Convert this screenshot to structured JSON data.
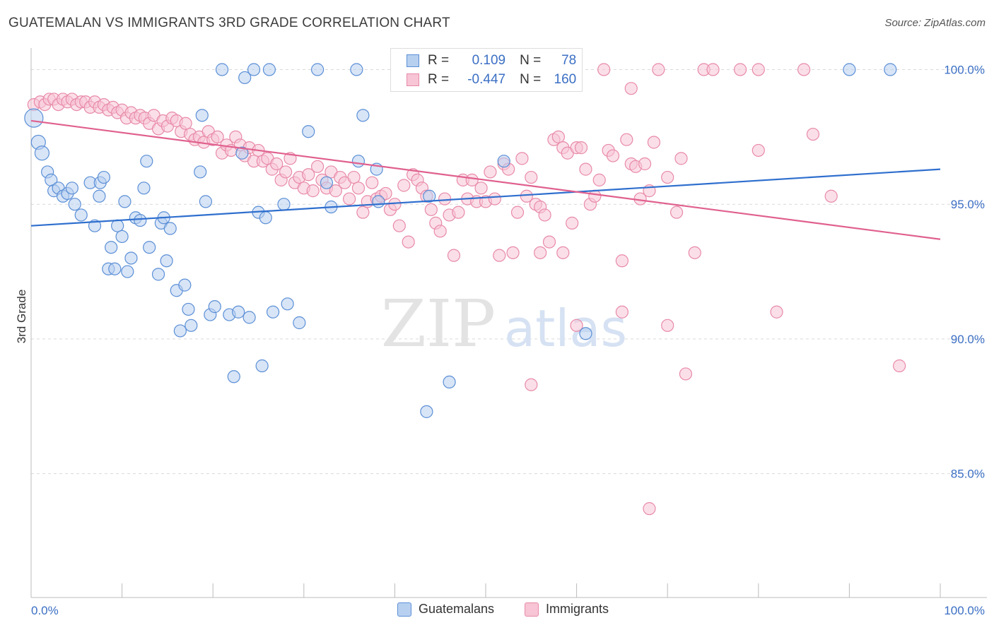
{
  "header": {
    "title": "GUATEMALAN VS IMMIGRANTS 3RD GRADE CORRELATION CHART",
    "source": "Source: ZipAtlas.com"
  },
  "watermark": {
    "zip": "ZIP",
    "atlas": "atlas"
  },
  "legend_top": {
    "rows": [
      {
        "r_label": "R =",
        "r_value": "0.109",
        "n_label": "N =",
        "n_value": "78"
      },
      {
        "r_label": "R =",
        "r_value": "-0.447",
        "n_label": "N =",
        "n_value": "160"
      }
    ]
  },
  "legend_bottom": {
    "items": [
      "Guatemalans",
      "Immigrants"
    ]
  },
  "colors": {
    "blue": "#5b8fd6",
    "blue_fill": "#b8d0f0",
    "blue_line": "#2f6fce",
    "pink": "#e88aa8",
    "pink_fill": "#f7c5d5",
    "pink_line": "#e0608e",
    "tick": "#3b6fc4"
  },
  "chart_data": {
    "type": "scatter",
    "title": "GUATEMALAN VS IMMIGRANTS 3RD GRADE CORRELATION CHART",
    "xlabel": "",
    "ylabel": "3rd Grade",
    "xlim": [
      0,
      100
    ],
    "ylim": [
      80.4,
      100.8
    ],
    "x_tick_labels": [
      "0.0%",
      "100.0%"
    ],
    "y_ticks": [
      85,
      90,
      95,
      100
    ],
    "y_tick_labels": [
      "85.0%",
      "90.0%",
      "95.0%",
      "100.0%"
    ],
    "grid": true,
    "series": [
      {
        "name": "Guatemalans",
        "trend": [
          [
            0,
            94.2
          ],
          [
            100,
            96.3
          ]
        ],
        "points": [
          [
            0.3,
            98.2
          ],
          [
            0.8,
            97.3
          ],
          [
            1.2,
            96.9
          ],
          [
            1.8,
            96.2
          ],
          [
            2.2,
            95.9
          ],
          [
            2.5,
            95.5
          ],
          [
            3.0,
            95.6
          ],
          [
            3.5,
            95.3
          ],
          [
            4.0,
            95.4
          ],
          [
            4.5,
            95.6
          ],
          [
            4.8,
            95.0
          ],
          [
            5.5,
            94.6
          ],
          [
            6.5,
            95.8
          ],
          [
            7.0,
            94.2
          ],
          [
            7.5,
            95.3
          ],
          [
            7.6,
            95.8
          ],
          [
            8.0,
            96.0
          ],
          [
            8.5,
            92.6
          ],
          [
            8.8,
            93.4
          ],
          [
            9.2,
            92.6
          ],
          [
            9.5,
            94.2
          ],
          [
            10.0,
            93.8
          ],
          [
            10.3,
            95.1
          ],
          [
            10.6,
            92.5
          ],
          [
            11.0,
            93.0
          ],
          [
            11.5,
            94.5
          ],
          [
            12.0,
            94.4
          ],
          [
            12.4,
            95.6
          ],
          [
            12.7,
            96.6
          ],
          [
            13.0,
            93.4
          ],
          [
            14.0,
            92.4
          ],
          [
            14.3,
            94.3
          ],
          [
            14.6,
            94.5
          ],
          [
            14.9,
            92.9
          ],
          [
            15.3,
            94.1
          ],
          [
            16.0,
            91.8
          ],
          [
            16.4,
            90.3
          ],
          [
            16.9,
            92.0
          ],
          [
            17.3,
            91.1
          ],
          [
            17.6,
            90.5
          ],
          [
            18.6,
            96.2
          ],
          [
            18.8,
            98.3
          ],
          [
            19.2,
            95.1
          ],
          [
            19.7,
            90.9
          ],
          [
            20.2,
            91.2
          ],
          [
            21.0,
            100.0
          ],
          [
            21.8,
            90.9
          ],
          [
            22.3,
            88.6
          ],
          [
            22.8,
            91.0
          ],
          [
            23.2,
            96.9
          ],
          [
            23.5,
            99.7
          ],
          [
            24.0,
            90.8
          ],
          [
            24.5,
            100.0
          ],
          [
            25.0,
            94.7
          ],
          [
            25.4,
            89.0
          ],
          [
            25.8,
            94.5
          ],
          [
            26.2,
            100.0
          ],
          [
            26.6,
            91.0
          ],
          [
            27.8,
            95.0
          ],
          [
            28.2,
            91.3
          ],
          [
            29.5,
            90.6
          ],
          [
            30.5,
            97.7
          ],
          [
            31.5,
            100.0
          ],
          [
            32.5,
            95.8
          ],
          [
            33.0,
            94.9
          ],
          [
            36.0,
            96.6
          ],
          [
            35.8,
            100.0
          ],
          [
            36.5,
            98.3
          ],
          [
            38.0,
            96.3
          ],
          [
            38.2,
            95.1
          ],
          [
            43.5,
            87.3
          ],
          [
            43.8,
            95.3
          ],
          [
            46.0,
            88.4
          ],
          [
            52.0,
            96.6
          ],
          [
            57.0,
            100.0
          ],
          [
            61.0,
            90.2
          ],
          [
            90.0,
            100.0
          ],
          [
            94.5,
            100.0
          ]
        ]
      },
      {
        "name": "Immigrants",
        "trend": [
          [
            0,
            98.1
          ],
          [
            100,
            93.7
          ]
        ],
        "points": [
          [
            0.3,
            98.7
          ],
          [
            1.0,
            98.8
          ],
          [
            1.5,
            98.7
          ],
          [
            2.0,
            98.9
          ],
          [
            2.5,
            98.9
          ],
          [
            3.0,
            98.7
          ],
          [
            3.5,
            98.9
          ],
          [
            4.0,
            98.8
          ],
          [
            4.5,
            98.9
          ],
          [
            5.0,
            98.7
          ],
          [
            5.5,
            98.8
          ],
          [
            6.0,
            98.8
          ],
          [
            6.5,
            98.6
          ],
          [
            7.0,
            98.8
          ],
          [
            7.5,
            98.6
          ],
          [
            8.0,
            98.7
          ],
          [
            8.5,
            98.5
          ],
          [
            9.0,
            98.6
          ],
          [
            9.5,
            98.4
          ],
          [
            10.0,
            98.5
          ],
          [
            10.5,
            98.2
          ],
          [
            11.0,
            98.4
          ],
          [
            11.5,
            98.2
          ],
          [
            12.0,
            98.3
          ],
          [
            12.5,
            98.2
          ],
          [
            13.0,
            98.0
          ],
          [
            13.5,
            98.3
          ],
          [
            14.0,
            97.8
          ],
          [
            14.5,
            98.1
          ],
          [
            15.0,
            97.9
          ],
          [
            15.5,
            98.2
          ],
          [
            16.0,
            98.1
          ],
          [
            16.5,
            97.7
          ],
          [
            17.0,
            98.0
          ],
          [
            17.5,
            97.6
          ],
          [
            18.0,
            97.4
          ],
          [
            18.5,
            97.5
          ],
          [
            19.0,
            97.3
          ],
          [
            19.5,
            97.7
          ],
          [
            20.0,
            97.4
          ],
          [
            20.5,
            97.5
          ],
          [
            21.0,
            96.9
          ],
          [
            21.5,
            97.2
          ],
          [
            22.0,
            97.0
          ],
          [
            22.5,
            97.5
          ],
          [
            23.0,
            97.2
          ],
          [
            23.5,
            96.8
          ],
          [
            24.0,
            97.1
          ],
          [
            24.5,
            96.6
          ],
          [
            25.0,
            97.0
          ],
          [
            25.5,
            96.6
          ],
          [
            26.0,
            96.7
          ],
          [
            26.5,
            96.3
          ],
          [
            27.0,
            96.5
          ],
          [
            27.5,
            95.9
          ],
          [
            28.0,
            96.2
          ],
          [
            28.5,
            96.7
          ],
          [
            29.0,
            95.8
          ],
          [
            29.5,
            96.0
          ],
          [
            30.0,
            95.6
          ],
          [
            30.5,
            96.1
          ],
          [
            31.0,
            95.5
          ],
          [
            31.5,
            96.4
          ],
          [
            32.0,
            95.9
          ],
          [
            32.5,
            95.6
          ],
          [
            33.0,
            96.2
          ],
          [
            33.5,
            95.5
          ],
          [
            34.0,
            96.0
          ],
          [
            34.5,
            95.8
          ],
          [
            35.0,
            95.2
          ],
          [
            35.5,
            96.0
          ],
          [
            36.0,
            95.6
          ],
          [
            36.5,
            94.7
          ],
          [
            37.0,
            95.1
          ],
          [
            37.5,
            95.8
          ],
          [
            38.0,
            95.2
          ],
          [
            38.5,
            95.3
          ],
          [
            39.0,
            95.4
          ],
          [
            39.5,
            94.8
          ],
          [
            40.0,
            95.0
          ],
          [
            40.5,
            94.2
          ],
          [
            41.0,
            95.7
          ],
          [
            41.5,
            93.6
          ],
          [
            42.0,
            96.1
          ],
          [
            42.5,
            95.9
          ],
          [
            43.0,
            95.6
          ],
          [
            43.5,
            95.3
          ],
          [
            44.0,
            94.8
          ],
          [
            44.5,
            94.3
          ],
          [
            45.0,
            94.0
          ],
          [
            45.5,
            95.2
          ],
          [
            46.0,
            94.6
          ],
          [
            46.5,
            93.1
          ],
          [
            47.0,
            94.7
          ],
          [
            47.5,
            95.9
          ],
          [
            48.0,
            95.2
          ],
          [
            48.5,
            95.9
          ],
          [
            49.0,
            95.1
          ],
          [
            49.5,
            95.6
          ],
          [
            50.0,
            95.1
          ],
          [
            50.5,
            96.2
          ],
          [
            51.0,
            95.2
          ],
          [
            51.5,
            93.1
          ],
          [
            52.0,
            96.5
          ],
          [
            52.5,
            96.3
          ],
          [
            53.0,
            93.2
          ],
          [
            53.5,
            94.7
          ],
          [
            54.0,
            96.7
          ],
          [
            54.5,
            95.3
          ],
          [
            55.0,
            96.0
          ],
          [
            55.5,
            95.0
          ],
          [
            56.0,
            94.9
          ],
          [
            56.5,
            94.6
          ],
          [
            57.0,
            93.6
          ],
          [
            57.5,
            97.4
          ],
          [
            58.0,
            97.5
          ],
          [
            58.5,
            97.1
          ],
          [
            59.0,
            96.9
          ],
          [
            59.5,
            94.3
          ],
          [
            60.0,
            97.1
          ],
          [
            60.5,
            97.1
          ],
          [
            61.0,
            96.3
          ],
          [
            61.5,
            95.0
          ],
          [
            62.0,
            95.3
          ],
          [
            62.5,
            95.9
          ],
          [
            63.0,
            100.0
          ],
          [
            63.5,
            97.0
          ],
          [
            64.0,
            96.8
          ],
          [
            65.0,
            92.9
          ],
          [
            65.5,
            97.4
          ],
          [
            66.0,
            96.5
          ],
          [
            66.5,
            96.4
          ],
          [
            67.0,
            95.2
          ],
          [
            67.5,
            96.5
          ],
          [
            68.0,
            95.5
          ],
          [
            68.5,
            97.3
          ],
          [
            69.0,
            100.0
          ],
          [
            70.0,
            96.0
          ],
          [
            71.0,
            94.7
          ],
          [
            71.5,
            96.7
          ],
          [
            72.0,
            88.7
          ],
          [
            73.0,
            93.2
          ],
          [
            74.0,
            100.0
          ],
          [
            75.0,
            100.0
          ],
          [
            78.0,
            100.0
          ],
          [
            80.0,
            100.0
          ],
          [
            82.0,
            91.0
          ],
          [
            85.0,
            100.0
          ],
          [
            86.0,
            97.6
          ],
          [
            95.5,
            89.0
          ],
          [
            55.0,
            88.3
          ],
          [
            56.0,
            93.2
          ],
          [
            58.5,
            93.2
          ],
          [
            60.0,
            90.5
          ],
          [
            65.0,
            91.0
          ],
          [
            66.0,
            99.3
          ],
          [
            68.0,
            83.7
          ],
          [
            70.0,
            90.5
          ],
          [
            80.0,
            97.0
          ],
          [
            88.0,
            95.3
          ]
        ]
      }
    ]
  }
}
